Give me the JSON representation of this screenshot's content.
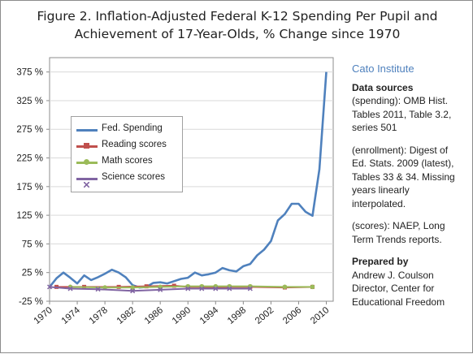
{
  "figure": {
    "title_line1": "Figure 2.  Inflation-Adjusted Federal K-12 Spending Per Pupil and",
    "title_line2": "Achievement of 17-Year-Olds, % Change since 1970"
  },
  "sidebar": {
    "org": "Cato Institute",
    "sources_header": "Data sources",
    "spending_lines": [
      "(spending): OMB Hist.",
      "Tables 2011, Table 3.2,",
      "series 501"
    ],
    "enrollment_lines": [
      "(enrollment): Digest of",
      "Ed. Stats. 2009 (latest),",
      "Tables 33 & 34. Missing",
      "years linearly",
      "interpolated."
    ],
    "scores_lines": [
      "(scores): NAEP, Long",
      "Term Trends reports."
    ],
    "prepared_header": "Prepared by",
    "prepared_lines": [
      "Andrew J. Coulson",
      "Director, Center for",
      "Educational Freedom"
    ]
  },
  "colors": {
    "spending": "#4f81bd",
    "reading": "#c0504d",
    "math": "#9bbb59",
    "science": "#8064a2",
    "grid": "#d9d9d9"
  },
  "chart_data": {
    "type": "line",
    "xlim": [
      1970,
      2011
    ],
    "ylim": [
      -25,
      400
    ],
    "y_ticks": [
      -25,
      25,
      75,
      125,
      175,
      225,
      275,
      325,
      375
    ],
    "y_tick_labels": [
      "-25 %",
      "25 %",
      "75 %",
      "125 %",
      "175 %",
      "225 %",
      "275 %",
      "325 %",
      "375 %"
    ],
    "x_ticks": [
      1970,
      1974,
      1978,
      1982,
      1986,
      1990,
      1994,
      1998,
      2002,
      2006,
      2010
    ],
    "x_tick_labels": [
      "1970",
      "1974",
      "1978",
      "1982",
      "1986",
      "1990",
      "1994",
      "1998",
      "2002",
      "2006",
      "2010"
    ],
    "grid": "horizontal",
    "legend_position": "left",
    "series": [
      {
        "name": "Fed. Spending",
        "marker": "none",
        "x": [
          1970,
          1971,
          1972,
          1973,
          1974,
          1975,
          1976,
          1977,
          1978,
          1979,
          1980,
          1981,
          1982,
          1983,
          1984,
          1985,
          1986,
          1987,
          1988,
          1989,
          1990,
          1991,
          1992,
          1993,
          1994,
          1995,
          1996,
          1997,
          1998,
          1999,
          2000,
          2001,
          2002,
          2003,
          2004,
          2005,
          2006,
          2007,
          2008,
          2009,
          2010
        ],
        "y": [
          0,
          15,
          25,
          16,
          6,
          20,
          12,
          17,
          23,
          30,
          25,
          17,
          3,
          -1,
          0,
          7,
          8,
          6,
          10,
          14,
          16,
          25,
          20,
          22,
          25,
          33,
          29,
          27,
          36,
          40,
          55,
          65,
          80,
          116,
          127,
          145,
          145,
          131,
          124,
          205,
          375
        ]
      },
      {
        "name": "Reading scores",
        "marker": "square",
        "x": [
          1971,
          1975,
          1980,
          1984,
          1988,
          1990,
          1992,
          1994,
          1996,
          1999,
          2004,
          2008
        ],
        "y": [
          0,
          0,
          0,
          1,
          2,
          0,
          0,
          -1,
          0,
          0,
          -1,
          0
        ]
      },
      {
        "name": "Math scores",
        "marker": "circle",
        "x": [
          1973,
          1978,
          1982,
          1986,
          1990,
          1992,
          1994,
          1996,
          1999,
          2004,
          2008
        ],
        "y": [
          0,
          -1,
          -1,
          0,
          1,
          1,
          1,
          1,
          1,
          0,
          0
        ]
      },
      {
        "name": "Science scores",
        "marker": "cross",
        "x": [
          1970,
          1973,
          1977,
          1982,
          1986,
          1990,
          1992,
          1994,
          1996,
          1999
        ],
        "y": [
          0,
          -3,
          -4,
          -7,
          -5,
          -3,
          -3,
          -3,
          -3,
          -3
        ]
      }
    ]
  }
}
